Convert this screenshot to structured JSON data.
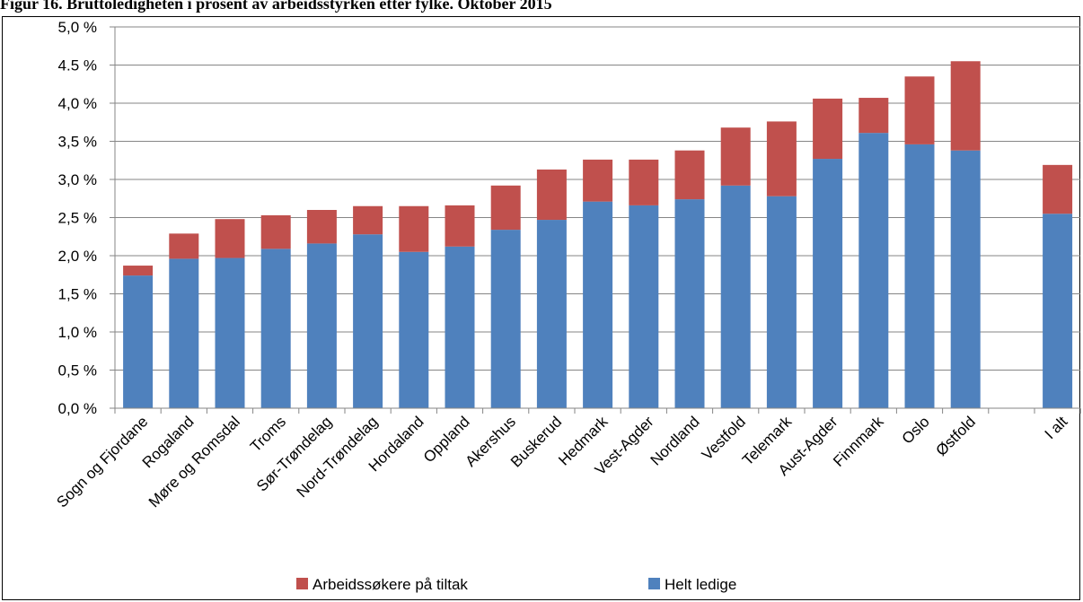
{
  "chart_data": {
    "type": "stacked-bar",
    "title": "Figur 16. Bruttoledigheten i prosent av arbeidsstyrken etter fylke. Oktober 2015",
    "categories": [
      "Sogn og Fjordane",
      "Rogaland",
      "Møre og Romsdal",
      "Troms",
      "Sør-Trøndelag",
      "Nord-Trøndelag",
      "Hordaland",
      "Oppland",
      "Akershus",
      "Buskerud",
      "Hedmark",
      "Vest-Agder",
      "Nordland",
      "Vestfold",
      "Telemark",
      "Aust-Agder",
      "Finnmark",
      "Oslo",
      "Østfold",
      null,
      "I alt"
    ],
    "series": [
      {
        "name": "Helt ledige",
        "color": "#4f81bd",
        "values": [
          1.74,
          1.96,
          1.97,
          2.09,
          2.16,
          2.28,
          2.05,
          2.12,
          2.34,
          2.47,
          2.71,
          2.66,
          2.74,
          2.92,
          2.78,
          3.27,
          3.61,
          3.46,
          3.38,
          null,
          2.55
        ]
      },
      {
        "name": "Arbeidssøkere på tiltak",
        "color": "#c0504d",
        "values": [
          0.13,
          0.33,
          0.51,
          0.44,
          0.44,
          0.37,
          0.6,
          0.54,
          0.58,
          0.66,
          0.55,
          0.6,
          0.64,
          0.76,
          0.98,
          0.79,
          0.46,
          0.89,
          1.17,
          null,
          0.64
        ]
      }
    ],
    "ylim": [
      0,
      5
    ],
    "yticks": [
      {
        "value": 0,
        "label": "0,0 %"
      },
      {
        "value": 0.5,
        "label": "0,5 %"
      },
      {
        "value": 1,
        "label": "1,0 %"
      },
      {
        "value": 1.5,
        "label": "1,5 %"
      },
      {
        "value": 2,
        "label": "2,0 %"
      },
      {
        "value": 2.5,
        "label": "2,5 %"
      },
      {
        "value": 3,
        "label": "3,0 %"
      },
      {
        "value": 3.5,
        "label": "3,5 %"
      },
      {
        "value": 4,
        "label": "4,0 %"
      },
      {
        "value": 4.5,
        "label": "4.5 %"
      },
      {
        "value": 5,
        "label": "5,0 %"
      }
    ],
    "grid": true,
    "legend": "bottom"
  }
}
